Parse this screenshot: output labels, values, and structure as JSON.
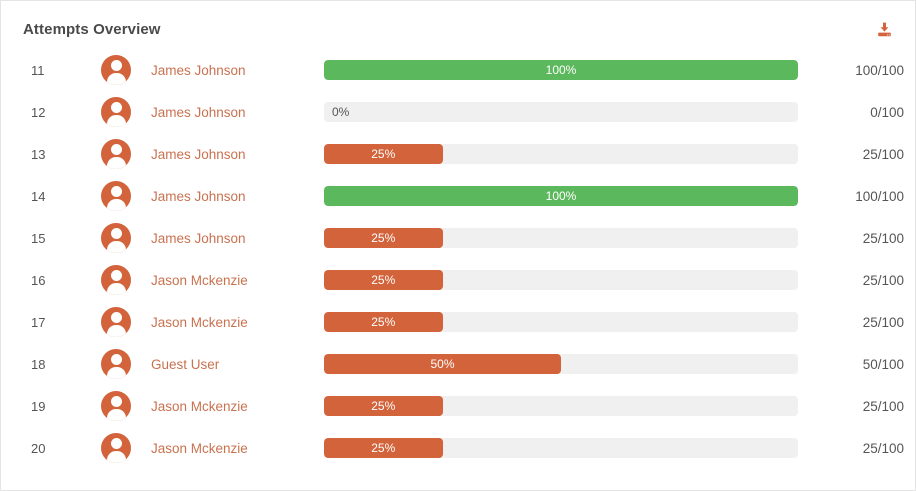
{
  "panel": {
    "title": "Attempts Overview"
  },
  "toolbar": {
    "download_icon": "download"
  },
  "colors": {
    "orange": "#d2633a",
    "green": "#5cb85c",
    "track": "#f0f0f0",
    "name_link": "#c97250",
    "text_gray": "#555555",
    "title_gray": "#4a4a4a"
  },
  "rows": [
    {
      "index": "11",
      "name": "James Johnson",
      "percent": 100,
      "percent_label": "100%",
      "score": "100/100",
      "color": "green"
    },
    {
      "index": "12",
      "name": "James Johnson",
      "percent": 0,
      "percent_label": "0%",
      "score": "0/100",
      "color": "none"
    },
    {
      "index": "13",
      "name": "James Johnson",
      "percent": 25,
      "percent_label": "25%",
      "score": "25/100",
      "color": "orange"
    },
    {
      "index": "14",
      "name": "James Johnson",
      "percent": 100,
      "percent_label": "100%",
      "score": "100/100",
      "color": "green"
    },
    {
      "index": "15",
      "name": "James Johnson",
      "percent": 25,
      "percent_label": "25%",
      "score": "25/100",
      "color": "orange"
    },
    {
      "index": "16",
      "name": "Jason Mckenzie",
      "percent": 25,
      "percent_label": "25%",
      "score": "25/100",
      "color": "orange"
    },
    {
      "index": "17",
      "name": "Jason Mckenzie",
      "percent": 25,
      "percent_label": "25%",
      "score": "25/100",
      "color": "orange"
    },
    {
      "index": "18",
      "name": "Guest User",
      "percent": 50,
      "percent_label": "50%",
      "score": "50/100",
      "color": "orange"
    },
    {
      "index": "19",
      "name": "Jason Mckenzie",
      "percent": 25,
      "percent_label": "25%",
      "score": "25/100",
      "color": "orange"
    },
    {
      "index": "20",
      "name": "Jason Mckenzie",
      "percent": 25,
      "percent_label": "25%",
      "score": "25/100",
      "color": "orange"
    }
  ]
}
